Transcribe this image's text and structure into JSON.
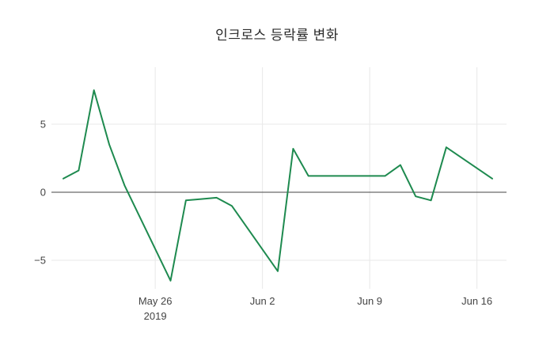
{
  "chart_data": {
    "type": "line",
    "title": "인크로스 등락률 변화",
    "xlabel": "",
    "ylabel": "",
    "x": [
      "2019-05-20",
      "2019-05-21",
      "2019-05-22",
      "2019-05-23",
      "2019-05-24",
      "2019-05-27",
      "2019-05-28",
      "2019-05-29",
      "2019-05-30",
      "2019-05-31",
      "2019-06-03",
      "2019-06-04",
      "2019-06-05",
      "2019-06-07",
      "2019-06-10",
      "2019-06-11",
      "2019-06-12",
      "2019-06-13",
      "2019-06-14",
      "2019-06-17"
    ],
    "values": [
      1.0,
      1.6,
      7.5,
      3.5,
      0.5,
      -6.5,
      -0.6,
      -0.5,
      -0.4,
      -1.0,
      -5.8,
      3.2,
      1.2,
      1.2,
      1.2,
      2.0,
      -0.3,
      -0.6,
      3.3,
      1.0
    ],
    "series_name": "등락률",
    "line_color": "#1e8a4f",
    "zero_line_color": "#444444",
    "grid_color": "#e8e8e8",
    "tick_color": "#444444",
    "grid": "on",
    "legend": "none",
    "ylim": [
      -7.5,
      9.2
    ],
    "yticks": [
      {
        "value": 5,
        "label": "5"
      },
      {
        "value": 0,
        "label": "0"
      },
      {
        "value": -5,
        "label": "−5"
      }
    ],
    "xticks": [
      {
        "date": "2019-05-26",
        "label": "May 26",
        "sublabel": "2019"
      },
      {
        "date": "2019-06-02",
        "label": "Jun 2",
        "sublabel": ""
      },
      {
        "date": "2019-06-09",
        "label": "Jun 9",
        "sublabel": ""
      },
      {
        "date": "2019-06-16",
        "label": "Jun 16",
        "sublabel": ""
      }
    ]
  }
}
